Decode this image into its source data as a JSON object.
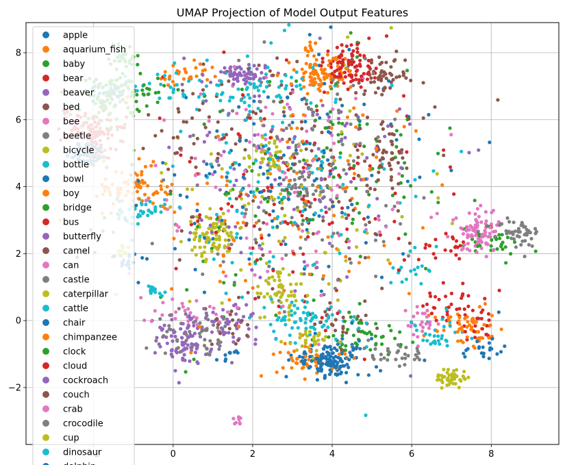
{
  "chart_data": {
    "type": "scatter",
    "title": "UMAP Projection of Model Output Features",
    "xlabel": "",
    "ylabel": "",
    "xlim": [
      -3.7,
      9.7
    ],
    "ylim": [
      -3.7,
      8.9
    ],
    "x_ticks": [
      -2,
      0,
      2,
      4,
      6,
      8
    ],
    "y_ticks": [
      -2,
      0,
      2,
      4,
      6,
      8
    ],
    "x_tick_labels": [
      "−2",
      "0",
      "2",
      "4",
      "6",
      "8"
    ],
    "y_tick_labels": [
      "−2",
      "0",
      "2",
      "4",
      "6",
      "8"
    ],
    "grid": true,
    "legend_position": "upper-left",
    "series": [
      {
        "name": "apple",
        "color": "#1f77b4",
        "clusters": [
          [
            4.0,
            -1.2,
            0.4,
            0.25,
            60
          ],
          [
            -2.2,
            5.0,
            0.25,
            0.2,
            25
          ],
          [
            -1.2,
            1.8,
            0.3,
            0.2,
            20
          ],
          [
            2.5,
            4.0,
            1.6,
            1.8,
            40
          ]
        ]
      },
      {
        "name": "aquarium_fish",
        "color": "#ff7f0e",
        "clusters": [
          [
            3.9,
            7.4,
            0.4,
            0.3,
            45
          ],
          [
            3.45,
            8.1,
            0.08,
            0.15,
            10
          ],
          [
            -1.0,
            3.9,
            0.5,
            0.3,
            40
          ],
          [
            7.3,
            -0.2,
            0.4,
            0.3,
            30
          ],
          [
            3.0,
            4.0,
            1.8,
            1.8,
            40
          ]
        ]
      },
      {
        "name": "baby",
        "color": "#2ca02c",
        "clusters": [
          [
            -1.2,
            7.9,
            0.2,
            0.2,
            30
          ],
          [
            -1.6,
            6.6,
            0.4,
            0.4,
            40
          ],
          [
            8.0,
            2.3,
            0.4,
            0.2,
            30
          ],
          [
            2.0,
            3.5,
            1.8,
            2.0,
            40
          ]
        ]
      },
      {
        "name": "bear",
        "color": "#d62728",
        "clusters": [
          [
            4.4,
            7.6,
            0.4,
            0.3,
            45
          ],
          [
            -2.0,
            5.7,
            0.4,
            0.3,
            40
          ],
          [
            7.0,
            0.5,
            0.4,
            0.3,
            30
          ],
          [
            6.8,
            2.2,
            0.3,
            0.2,
            20
          ],
          [
            3.5,
            3.0,
            1.5,
            1.5,
            40
          ]
        ]
      },
      {
        "name": "beaver",
        "color": "#9467bd",
        "clusters": [
          [
            0.3,
            -0.7,
            0.3,
            0.3,
            35
          ],
          [
            1.5,
            7.3,
            0.4,
            0.2,
            30
          ],
          [
            2.5,
            4.5,
            1.6,
            1.8,
            40
          ]
        ]
      },
      {
        "name": "bed",
        "color": "#8c564b",
        "clusters": [
          [
            5.4,
            5.0,
            0.25,
            0.5,
            40
          ],
          [
            5.3,
            7.3,
            0.3,
            0.2,
            20
          ],
          [
            2.8,
            5.0,
            1.8,
            1.5,
            40
          ]
        ]
      },
      {
        "name": "bee",
        "color": "#e377c2",
        "clusters": [
          [
            7.6,
            2.7,
            0.3,
            0.3,
            40
          ],
          [
            0.5,
            0.3,
            0.5,
            0.3,
            30
          ],
          [
            6.3,
            -0.1,
            0.2,
            0.3,
            25
          ],
          [
            2.5,
            3.5,
            1.8,
            1.8,
            40
          ]
        ]
      },
      {
        "name": "beetle",
        "color": "#7f7f7f",
        "clusters": [
          [
            8.6,
            2.6,
            0.3,
            0.2,
            30
          ],
          [
            5.5,
            -1.0,
            0.5,
            0.2,
            35
          ],
          [
            -2.0,
            4.9,
            0.3,
            0.2,
            20
          ],
          [
            3.0,
            3.5,
            1.8,
            1.8,
            40
          ]
        ]
      },
      {
        "name": "bicycle",
        "color": "#bcbd22",
        "clusters": [
          [
            1.0,
            2.4,
            0.3,
            0.3,
            45
          ],
          [
            2.4,
            5.0,
            0.3,
            0.3,
            30
          ],
          [
            2.8,
            0.8,
            0.3,
            0.3,
            25
          ],
          [
            2.5,
            3.5,
            1.5,
            1.5,
            30
          ]
        ]
      },
      {
        "name": "bottle",
        "color": "#17becf",
        "clusters": [
          [
            -0.8,
            3.3,
            0.3,
            0.2,
            40
          ],
          [
            0.2,
            7.0,
            0.6,
            0.3,
            30
          ],
          [
            6.0,
            1.5,
            0.3,
            0.15,
            15
          ],
          [
            3.0,
            0.0,
            0.5,
            0.3,
            30
          ],
          [
            2.5,
            4.5,
            1.8,
            1.8,
            40
          ]
        ]
      },
      {
        "name": "bowl",
        "color": "#1f77b4",
        "clusters": [
          [
            3.8,
            -1.3,
            0.4,
            0.2,
            40
          ],
          [
            7.8,
            -0.9,
            0.3,
            0.2,
            20
          ],
          [
            -1.6,
            6.9,
            0.3,
            0.2,
            25
          ],
          [
            3.0,
            4.0,
            1.6,
            1.8,
            35
          ]
        ]
      },
      {
        "name": "boy",
        "color": "#ff7f0e",
        "clusters": [
          [
            3.4,
            -1.1,
            0.4,
            0.3,
            40
          ],
          [
            0.3,
            7.3,
            0.4,
            0.2,
            30
          ],
          [
            -1.1,
            4.0,
            0.4,
            0.3,
            30
          ],
          [
            3.0,
            3.0,
            1.6,
            1.8,
            35
          ]
        ]
      },
      {
        "name": "bridge",
        "color": "#2ca02c",
        "clusters": [
          [
            -0.9,
            6.9,
            0.4,
            0.2,
            35
          ],
          [
            3.5,
            4.0,
            1.8,
            1.8,
            40
          ],
          [
            5.0,
            -0.5,
            0.5,
            0.3,
            20
          ]
        ]
      },
      {
        "name": "bus",
        "color": "#d62728",
        "clusters": [
          [
            -2.3,
            5.8,
            0.3,
            0.3,
            35
          ],
          [
            7.5,
            -0.1,
            0.3,
            0.3,
            25
          ],
          [
            3.0,
            5.5,
            1.8,
            1.5,
            40
          ]
        ]
      },
      {
        "name": "butterfly",
        "color": "#9467bd",
        "clusters": [
          [
            1.8,
            7.3,
            0.3,
            0.2,
            30
          ],
          [
            0.7,
            -0.2,
            0.6,
            0.4,
            30
          ],
          [
            3.5,
            4.5,
            1.6,
            1.8,
            35
          ]
        ]
      },
      {
        "name": "camel",
        "color": "#8c564b",
        "clusters": [
          [
            3.0,
            4.5,
            1.8,
            1.8,
            45
          ],
          [
            4.2,
            0.0,
            0.4,
            0.3,
            25
          ],
          [
            0.5,
            6.0,
            0.8,
            0.6,
            25
          ]
        ]
      },
      {
        "name": "can",
        "color": "#e377c2",
        "clusters": [
          [
            7.7,
            2.6,
            0.2,
            0.3,
            25
          ],
          [
            -2.5,
            5.9,
            0.15,
            0.1,
            10
          ],
          [
            2.0,
            4.5,
            1.8,
            1.8,
            40
          ]
        ]
      },
      {
        "name": "castle",
        "color": "#7f7f7f",
        "clusters": [
          [
            3.2,
            4.0,
            0.4,
            0.4,
            40
          ],
          [
            0.4,
            -0.3,
            0.4,
            0.3,
            25
          ],
          [
            4.0,
            6.0,
            1.5,
            1.2,
            35
          ]
        ]
      },
      {
        "name": "caterpillar",
        "color": "#bcbd22",
        "clusters": [
          [
            7.0,
            -1.7,
            0.2,
            0.15,
            45
          ],
          [
            2.6,
            1.0,
            0.3,
            0.3,
            30
          ],
          [
            -1.2,
            2.1,
            0.1,
            0.1,
            10
          ],
          [
            3.5,
            3.5,
            1.5,
            1.8,
            30
          ]
        ]
      },
      {
        "name": "cattle",
        "color": "#17becf",
        "clusters": [
          [
            1.7,
            6.9,
            0.5,
            0.3,
            35
          ],
          [
            6.6,
            -0.5,
            0.4,
            0.3,
            30
          ],
          [
            -0.5,
            0.9,
            0.2,
            0.1,
            15
          ],
          [
            3.0,
            4.0,
            1.8,
            1.8,
            35
          ]
        ]
      },
      {
        "name": "chair",
        "color": "#1f77b4",
        "clusters": [
          [
            4.2,
            -1.1,
            0.4,
            0.3,
            45
          ],
          [
            1.4,
            -1.0,
            0.1,
            0.1,
            10
          ],
          [
            2.5,
            5.0,
            1.8,
            1.8,
            35
          ]
        ]
      },
      {
        "name": "chimpanzee",
        "color": "#ff7f0e",
        "clusters": [
          [
            3.7,
            7.3,
            0.3,
            0.3,
            40
          ],
          [
            7.4,
            -0.2,
            0.3,
            0.3,
            25
          ],
          [
            2.5,
            3.5,
            1.8,
            1.8,
            35
          ]
        ]
      },
      {
        "name": "clock",
        "color": "#2ca02c",
        "clusters": [
          [
            -1.7,
            6.5,
            0.4,
            0.4,
            35
          ],
          [
            4.0,
            4.5,
            1.6,
            1.6,
            40
          ],
          [
            4.5,
            -0.5,
            0.5,
            0.3,
            20
          ]
        ]
      },
      {
        "name": "cloud",
        "color": "#d62728",
        "clusters": [
          [
            4.6,
            7.6,
            0.4,
            0.4,
            45
          ],
          [
            -1.8,
            5.5,
            0.3,
            0.3,
            25
          ],
          [
            3.5,
            3.5,
            1.5,
            1.5,
            35
          ]
        ]
      },
      {
        "name": "cockroach",
        "color": "#9467bd",
        "clusters": [
          [
            0.3,
            -0.7,
            0.3,
            0.3,
            35
          ],
          [
            1.6,
            -0.1,
            0.3,
            0.3,
            25
          ],
          [
            3.0,
            4.5,
            1.8,
            1.8,
            35
          ]
        ]
      },
      {
        "name": "couch",
        "color": "#8c564b",
        "clusters": [
          [
            5.4,
            7.3,
            0.3,
            0.3,
            30
          ],
          [
            2.8,
            4.0,
            1.8,
            1.8,
            40
          ],
          [
            1.5,
            -0.2,
            0.4,
            0.3,
            20
          ]
        ]
      },
      {
        "name": "crab",
        "color": "#e377c2",
        "clusters": [
          [
            1.65,
            -3.0,
            0.05,
            0.08,
            8
          ],
          [
            7.6,
            2.8,
            0.3,
            0.3,
            25
          ],
          [
            3.0,
            4.0,
            1.8,
            1.8,
            35
          ]
        ]
      },
      {
        "name": "crocodile",
        "color": "#7f7f7f",
        "clusters": [
          [
            0.9,
            -0.5,
            0.4,
            0.3,
            30
          ],
          [
            8.8,
            2.6,
            0.2,
            0.2,
            20
          ],
          [
            3.5,
            4.0,
            1.5,
            1.5,
            35
          ]
        ]
      },
      {
        "name": "cup",
        "color": "#bcbd22",
        "clusters": [
          [
            3.4,
            -0.6,
            0.3,
            0.2,
            30
          ],
          [
            1.0,
            2.5,
            0.3,
            0.3,
            30
          ],
          [
            2.5,
            4.5,
            1.6,
            1.6,
            30
          ]
        ]
      },
      {
        "name": "dinosaur",
        "color": "#17becf",
        "clusters": [
          [
            3.7,
            0.0,
            0.5,
            0.2,
            35
          ],
          [
            2.6,
            7.0,
            0.5,
            0.3,
            25
          ],
          [
            3.0,
            3.5,
            1.8,
            1.8,
            35
          ]
        ]
      },
      {
        "name": "dolphin",
        "color": "#1f77b4",
        "clusters": [
          [
            -2.2,
            5.0,
            0.2,
            0.2,
            20
          ],
          [
            3.5,
            4.0,
            1.8,
            1.8,
            35
          ]
        ]
      }
    ]
  }
}
